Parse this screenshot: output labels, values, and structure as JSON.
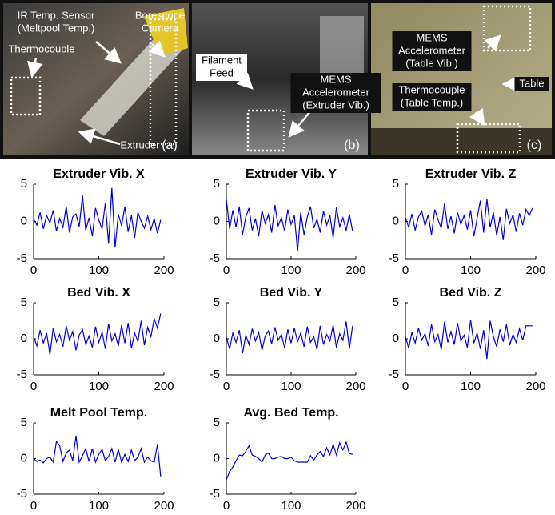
{
  "photos": [
    {
      "panel": "(a)",
      "labels": [
        [
          "IR Temp. Sensor",
          "(Meltpool Temp.)"
        ],
        [
          "Borescope",
          "Camera"
        ],
        [
          "Thermocouple"
        ],
        [
          "Extruder"
        ]
      ]
    },
    {
      "panel": "(b)",
      "labels": [
        [
          "Filament",
          "Feed"
        ],
        [
          "MEMS",
          "Accelerometer",
          "(Extruder Vib.)"
        ]
      ]
    },
    {
      "panel": "(c)",
      "labels": [
        [
          "MEMS",
          "Accelerometer",
          "(Table Vib.)"
        ],
        [
          "Table"
        ],
        [
          "Thermocouple",
          "(Table Temp.)"
        ]
      ]
    }
  ],
  "chart_data": [
    {
      "type": "line",
      "title": "Extruder Vib. X",
      "color": "#0000cc",
      "xlim": [
        0,
        200
      ],
      "ylim": [
        -5,
        5
      ],
      "xticks": [
        0,
        100,
        200
      ],
      "yticks": [
        -5,
        0,
        5
      ],
      "x": [
        0,
        5,
        10,
        15,
        20,
        25,
        30,
        35,
        40,
        45,
        50,
        55,
        60,
        65,
        70,
        75,
        80,
        85,
        90,
        95,
        100,
        105,
        110,
        115,
        120,
        125,
        130,
        135,
        140,
        145,
        150,
        155,
        160,
        165,
        170,
        175,
        180,
        185,
        190,
        195
      ],
      "values": [
        0.3,
        -0.5,
        1.2,
        -1,
        0.8,
        -0.2,
        1.5,
        -1.3,
        0.4,
        -0.8,
        2,
        -1.5,
        0.6,
        1,
        -0.7,
        3.5,
        -1.2,
        0.5,
        -2,
        1.8,
        0.2,
        -1,
        2.5,
        -3,
        4.5,
        -3.5,
        1,
        -0.6,
        2,
        -1.4,
        0.8,
        -2.2,
        1.2,
        0,
        -0.9,
        0.7,
        -1.1,
        0.4,
        -1.6,
        0.2
      ]
    },
    {
      "type": "line",
      "title": "Extruder Vib. Y",
      "color": "#0000cc",
      "xlim": [
        0,
        200
      ],
      "ylim": [
        -5,
        5
      ],
      "xticks": [
        0,
        100,
        200
      ],
      "yticks": [
        -5,
        0,
        5
      ],
      "x": [
        0,
        5,
        10,
        15,
        20,
        25,
        30,
        35,
        40,
        45,
        50,
        55,
        60,
        65,
        70,
        75,
        80,
        85,
        90,
        95,
        100,
        105,
        110,
        115,
        120,
        125,
        130,
        135,
        140,
        145,
        150,
        155,
        160,
        165,
        170,
        175,
        180,
        185,
        190,
        195
      ],
      "values": [
        3,
        -1,
        1.5,
        -0.8,
        2,
        -1.8,
        0.6,
        1.8,
        -1.2,
        0.4,
        -2,
        1.5,
        -0.3,
        0.9,
        -1.5,
        2.2,
        -0.6,
        0.5,
        -1.3,
        1.6,
        -0.4,
        0.8,
        -4,
        1.2,
        -1.8,
        0.6,
        2,
        -0.9,
        0.3,
        -1.5,
        1.4,
        -0.5,
        0.8,
        -2.2,
        1.9,
        -0.7,
        0.5,
        -1.2,
        1,
        -1.3
      ]
    },
    {
      "type": "line",
      "title": "Extruder Vib. Z",
      "color": "#0000cc",
      "xlim": [
        0,
        200
      ],
      "ylim": [
        -5,
        5
      ],
      "xticks": [
        0,
        100,
        200
      ],
      "yticks": [
        -5,
        0,
        5
      ],
      "x": [
        0,
        5,
        10,
        15,
        20,
        25,
        30,
        35,
        40,
        45,
        50,
        55,
        60,
        65,
        70,
        75,
        80,
        85,
        90,
        95,
        100,
        105,
        110,
        115,
        120,
        125,
        130,
        135,
        140,
        145,
        150,
        155,
        160,
        165,
        170,
        175,
        180,
        185,
        190,
        195
      ],
      "values": [
        0.5,
        -0.8,
        1,
        -1.2,
        0.6,
        1.4,
        -0.6,
        0.9,
        -1.8,
        1.6,
        0.2,
        -0.9,
        2.4,
        -1,
        0.7,
        -1.6,
        1.2,
        -0.4,
        0.8,
        -1.1,
        1.5,
        -2,
        0.4,
        2.8,
        -1.5,
        3,
        -0.8,
        1.2,
        -1.9,
        0.6,
        -2.5,
        1.7,
        -0.3,
        0.9,
        -1.4,
        1.1,
        -0.5,
        1.6,
        0.8,
        1.8
      ]
    },
    {
      "type": "line",
      "title": "Bed Vib. X",
      "color": "#0000cc",
      "xlim": [
        0,
        200
      ],
      "ylim": [
        -5,
        5
      ],
      "xticks": [
        0,
        100,
        200
      ],
      "yticks": [
        -5,
        0,
        5
      ],
      "x": [
        0,
        5,
        10,
        15,
        20,
        25,
        30,
        35,
        40,
        45,
        50,
        55,
        60,
        65,
        70,
        75,
        80,
        85,
        90,
        95,
        100,
        105,
        110,
        115,
        120,
        125,
        130,
        135,
        140,
        145,
        150,
        155,
        160,
        165,
        170,
        175,
        180,
        185,
        190,
        195
      ],
      "values": [
        0.3,
        -1,
        1.2,
        -0.6,
        0.8,
        -2.2,
        1.5,
        -0.4,
        0.6,
        -1.1,
        1.8,
        -0.2,
        1,
        -1.6,
        0.5,
        1.3,
        -0.8,
        0.4,
        -1.2,
        1.7,
        -0.5,
        0.9,
        -1.4,
        2.1,
        -0.3,
        0.7,
        -1,
        1.9,
        -0.6,
        2.2,
        -1.3,
        0.8,
        -0.4,
        2.5,
        -0.9,
        1.6,
        0.3,
        2.8,
        1.5,
        3.5
      ]
    },
    {
      "type": "line",
      "title": "Bed Vib. Y",
      "color": "#0000cc",
      "xlim": [
        0,
        200
      ],
      "ylim": [
        -5,
        5
      ],
      "xticks": [
        0,
        100,
        200
      ],
      "yticks": [
        -5,
        0,
        5
      ],
      "x": [
        0,
        5,
        10,
        15,
        20,
        25,
        30,
        35,
        40,
        45,
        50,
        55,
        60,
        65,
        70,
        75,
        80,
        85,
        90,
        95,
        100,
        105,
        110,
        115,
        120,
        125,
        130,
        135,
        140,
        145,
        150,
        155,
        160,
        165,
        170,
        175,
        180,
        185,
        190,
        195
      ],
      "values": [
        0.2,
        -1.4,
        0.8,
        -0.5,
        1.2,
        -2,
        0.5,
        -0.8,
        1.4,
        -0.3,
        0.9,
        -1.6,
        0.4,
        1.1,
        -0.7,
        1.6,
        -0.2,
        0.6,
        -1.3,
        1.3,
        -0.6,
        1.5,
        -0.4,
        0.8,
        -1.1,
        1.7,
        -0.5,
        0.3,
        -1.5,
        1.8,
        -0.8,
        0.6,
        -0.3,
        1.9,
        -1.2,
        0.7,
        -0.2,
        2.4,
        -1.4,
        1.8
      ]
    },
    {
      "type": "line",
      "title": "Bed Vib. Z",
      "color": "#0000cc",
      "xlim": [
        0,
        200
      ],
      "ylim": [
        -5,
        5
      ],
      "xticks": [
        0,
        100,
        200
      ],
      "yticks": [
        -5,
        0,
        5
      ],
      "x": [
        0,
        5,
        10,
        15,
        20,
        25,
        30,
        35,
        40,
        45,
        50,
        55,
        60,
        65,
        70,
        75,
        80,
        85,
        90,
        95,
        100,
        105,
        110,
        115,
        120,
        125,
        130,
        135,
        140,
        145,
        150,
        155,
        160,
        165,
        170,
        175,
        180,
        185,
        190,
        195
      ],
      "values": [
        0.3,
        -1.3,
        0.9,
        -0.6,
        1.5,
        -0.2,
        0.7,
        -1,
        2,
        -0.4,
        0.6,
        -1.5,
        2.4,
        -0.5,
        1,
        -0.8,
        2.2,
        -0.3,
        0.5,
        -1.2,
        2.6,
        -0.6,
        0.8,
        -1.4,
        1.2,
        -2.8,
        2.5,
        0.3,
        -1.1,
        1.3,
        -0.4,
        2,
        -0.9,
        0.6,
        -0.5,
        1.4,
        -0.2,
        1.8,
        1.8,
        1.8
      ]
    },
    {
      "type": "line",
      "title": "Melt Pool Temp.",
      "color": "#0000cc",
      "xlim": [
        0,
        200
      ],
      "ylim": [
        -5,
        5
      ],
      "xticks": [
        0,
        100,
        200
      ],
      "yticks": [
        -5,
        0,
        5
      ],
      "x": [
        0,
        5,
        10,
        15,
        20,
        25,
        30,
        35,
        40,
        45,
        50,
        55,
        60,
        65,
        70,
        75,
        80,
        85,
        90,
        95,
        100,
        105,
        110,
        115,
        120,
        125,
        130,
        135,
        140,
        145,
        150,
        155,
        160,
        165,
        170,
        175,
        180,
        185,
        190,
        195
      ],
      "values": [
        0,
        -0.4,
        -0.2,
        -0.6,
        0,
        0.2,
        -0.5,
        2.4,
        1.8,
        -0.4,
        0.8,
        1.2,
        -0.3,
        3.2,
        -0.5,
        0.4,
        1.4,
        -0.4,
        1.4,
        -0.5,
        0.6,
        1.3,
        -0.3,
        0.3,
        1.4,
        -0.5,
        1.3,
        -0.5,
        0.6,
        -0.4,
        1.2,
        -0.3,
        0.2,
        1.4,
        -0.5,
        0.2,
        -0.3,
        -0.5,
        2,
        -2.5
      ]
    },
    {
      "type": "line",
      "title": "Avg. Bed Temp.",
      "color": "#0000cc",
      "xlim": [
        0,
        200
      ],
      "ylim": [
        -5,
        5
      ],
      "xticks": [
        0,
        100,
        200
      ],
      "yticks": [
        -5,
        0,
        5
      ],
      "x": [
        0,
        5,
        10,
        15,
        20,
        25,
        30,
        35,
        40,
        45,
        50,
        55,
        60,
        65,
        70,
        75,
        80,
        85,
        90,
        95,
        100,
        105,
        110,
        115,
        120,
        125,
        130,
        135,
        140,
        145,
        150,
        155,
        160,
        165,
        170,
        175,
        180,
        185,
        190,
        195
      ],
      "values": [
        -3,
        -1.8,
        -1.2,
        -0.3,
        0.5,
        0.4,
        1,
        1.8,
        0.5,
        0.3,
        0,
        -0.5,
        0.5,
        0.8,
        0,
        0,
        0.2,
        0.3,
        0,
        0,
        0.2,
        -0.3,
        -0.5,
        -0.5,
        -0.5,
        -0.5,
        0.4,
        -0.2,
        0.5,
        1,
        0.3,
        1.5,
        0.5,
        2,
        0.5,
        2.2,
        1.2,
        2.3,
        0.7,
        0.6
      ]
    }
  ]
}
